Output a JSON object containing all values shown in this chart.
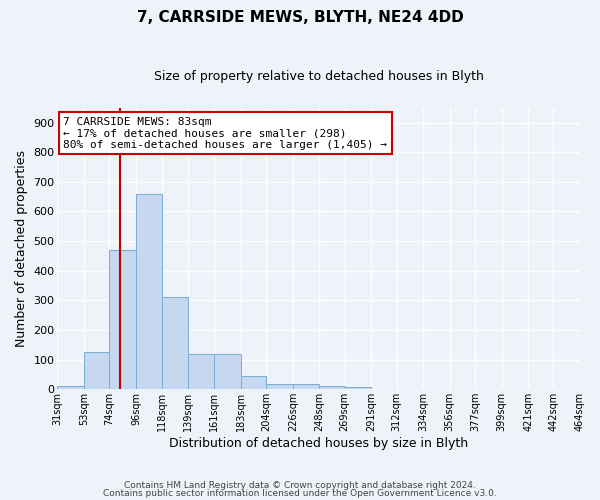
{
  "title": "7, CARRSIDE MEWS, BLYTH, NE24 4DD",
  "subtitle": "Size of property relative to detached houses in Blyth",
  "xlabel": "Distribution of detached houses by size in Blyth",
  "ylabel": "Number of detached properties",
  "bin_edges": [
    31,
    53,
    74,
    96,
    118,
    139,
    161,
    183,
    204,
    226,
    248,
    269,
    291,
    312,
    334,
    356,
    377,
    399,
    421,
    442,
    464
  ],
  "bar_heights": [
    10,
    125,
    470,
    660,
    310,
    120,
    120,
    45,
    18,
    18,
    10,
    8,
    0,
    0,
    0,
    0,
    0,
    0,
    0,
    0
  ],
  "bar_color": "#c5d8f0",
  "bar_edge_color": "#7aadd4",
  "property_size": 83,
  "red_line_color": "#cc0000",
  "annotation_text": "7 CARRSIDE MEWS: 83sqm\n← 17% of detached houses are smaller (298)\n80% of semi-detached houses are larger (1,405) →",
  "annotation_box_color": "#ffffff",
  "annotation_box_edge": "#cc0000",
  "ylim": [
    0,
    950
  ],
  "yticks": [
    0,
    100,
    200,
    300,
    400,
    500,
    600,
    700,
    800,
    900
  ],
  "footer_line1": "Contains HM Land Registry data © Crown copyright and database right 2024.",
  "footer_line2": "Contains public sector information licensed under the Open Government Licence v3.0.",
  "background_color": "#eef2f9",
  "grid_color": "#ffffff",
  "title_fontsize": 11,
  "subtitle_fontsize": 9
}
